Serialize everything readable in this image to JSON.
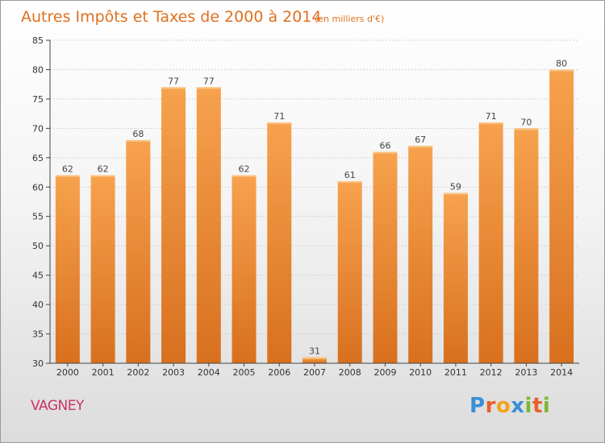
{
  "chart_data": {
    "type": "bar",
    "title": "Autres Impôts et Taxes de 2000 à 2014",
    "subtitle": "(en milliers d'€)",
    "categories": [
      "2000",
      "2001",
      "2002",
      "2003",
      "2004",
      "2005",
      "2006",
      "2007",
      "2008",
      "2009",
      "2010",
      "2011",
      "2012",
      "2013",
      "2014"
    ],
    "values": [
      62,
      62,
      68,
      77,
      77,
      62,
      71,
      31,
      61,
      66,
      67,
      59,
      71,
      70,
      80
    ],
    "ylim": [
      30,
      85
    ],
    "yticks": [
      30,
      35,
      40,
      45,
      50,
      55,
      60,
      65,
      70,
      75,
      80,
      85
    ],
    "grid": true,
    "legend": "none",
    "bar_color": "#ee8a2e"
  },
  "footer": {
    "place": "VAGNEY",
    "brand_letters": [
      "P",
      "r",
      "o",
      "x",
      "i",
      "t",
      "i"
    ],
    "brand_colors": [
      "#3a8fd6",
      "#e8602c",
      "#f2a51a",
      "#3a8fd6",
      "#7cb82f",
      "#e8602c",
      "#7cb82f"
    ]
  }
}
